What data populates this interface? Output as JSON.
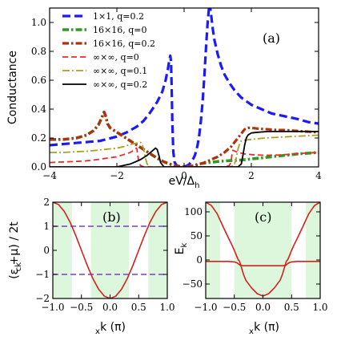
{
  "chart_data": [
    {
      "id": "a",
      "type": "line",
      "panel_label": "(a)",
      "ylabel": "Conductance",
      "xlabel": "eV/Δ",
      "xlabel_sub": "h",
      "xlim": [
        -4,
        4
      ],
      "ylim": [
        0,
        1.1
      ],
      "xticks": [
        -4,
        -2,
        0,
        2,
        4
      ],
      "xtick_labels": [
        "−4",
        "−2",
        "0",
        "2",
        "4"
      ],
      "yticks": [
        0,
        0.2,
        0.4,
        0.6,
        0.8,
        1.0
      ],
      "ytick_labels": [
        "0.0",
        "0.2",
        "0.4",
        "0.6",
        "0.8",
        "1.0"
      ],
      "legend_position": "top-left",
      "series": [
        {
          "name": "1×1,    q=0.2",
          "color": "#1a1aff",
          "dash": "dash-long",
          "width": 3.2,
          "x": [
            -4,
            -3.5,
            -3,
            -2.5,
            -2,
            -1.7,
            -1.4,
            -1.2,
            -1.0,
            -0.8,
            -0.65,
            -0.55,
            -0.48,
            -0.44,
            -0.41,
            -0.39,
            -0.37,
            -0.35,
            -0.32,
            -0.28,
            -0.22,
            -0.16,
            -0.1,
            -0.04,
            0,
            0.04,
            0.1,
            0.16,
            0.22,
            0.28,
            0.32,
            0.36,
            0.4,
            0.45,
            0.5,
            0.55,
            0.6,
            0.65,
            0.7,
            0.74,
            0.76,
            0.8,
            0.85,
            0.9,
            1.0,
            1.1,
            1.2,
            1.35,
            1.5,
            1.7,
            2.0,
            2.3,
            2.6,
            3.0,
            3.4,
            3.7,
            4.0
          ],
          "y": [
            0.15,
            0.16,
            0.17,
            0.18,
            0.21,
            0.24,
            0.28,
            0.32,
            0.38,
            0.45,
            0.52,
            0.6,
            0.68,
            0.74,
            0.77,
            0.73,
            0.55,
            0.3,
            0.1,
            0.03,
            0.01,
            0.005,
            0.004,
            0.003,
            0.003,
            0.004,
            0.01,
            0.02,
            0.04,
            0.06,
            0.08,
            0.11,
            0.15,
            0.22,
            0.32,
            0.45,
            0.62,
            0.82,
            1.0,
            1.1,
            1.13,
            1.06,
            0.96,
            0.88,
            0.78,
            0.7,
            0.64,
            0.58,
            0.53,
            0.48,
            0.43,
            0.4,
            0.37,
            0.35,
            0.33,
            0.31,
            0.3
          ]
        },
        {
          "name": "16×16, q=0",
          "color": "#2e9b1d",
          "dash": "dashdot-thick",
          "width": 3.6,
          "x": [
            -4,
            -3.6,
            -3.2,
            -2.9,
            -2.7,
            -2.55,
            -2.45,
            -2.38,
            -2.33,
            -2.28,
            -2.2,
            -2.0,
            -1.8,
            -1.6,
            -1.4,
            -1.2,
            -1.0,
            -0.8,
            -0.6,
            -0.4,
            -0.3,
            -0.2,
            -0.1,
            0,
            0.1,
            0.2,
            0.3,
            0.4,
            0.6,
            0.8,
            1.0,
            1.2,
            1.4,
            1.6,
            1.8,
            2.0,
            2.3,
            2.6,
            3.0,
            3.4,
            3.7,
            4.0
          ],
          "y": [
            0.19,
            0.19,
            0.2,
            0.22,
            0.25,
            0.29,
            0.34,
            0.38,
            0.35,
            0.3,
            0.27,
            0.24,
            0.21,
            0.18,
            0.15,
            0.12,
            0.09,
            0.06,
            0.035,
            0.018,
            0.01,
            0.005,
            0.002,
            0.001,
            0.002,
            0.005,
            0.01,
            0.018,
            0.026,
            0.032,
            0.037,
            0.041,
            0.044,
            0.046,
            0.05,
            0.055,
            0.062,
            0.07,
            0.08,
            0.09,
            0.095,
            0.1
          ]
        },
        {
          "name": "16×16, q=0.2",
          "color": "#b03010",
          "dash": "dashdot-thick",
          "width": 3.2,
          "x": [
            -4,
            -3.6,
            -3.2,
            -2.9,
            -2.7,
            -2.55,
            -2.45,
            -2.38,
            -2.33,
            -2.28,
            -2.2,
            -2.0,
            -1.8,
            -1.6,
            -1.4,
            -1.2,
            -1.0,
            -0.8,
            -0.6,
            -0.4,
            -0.2,
            0,
            0.2,
            0.4,
            0.6,
            0.8,
            1.0,
            1.2,
            1.4,
            1.5,
            1.6,
            1.7,
            1.8,
            1.9,
            2.0,
            2.2,
            2.5,
            2.8,
            3.0,
            3.3,
            3.6,
            4.0
          ],
          "y": [
            0.19,
            0.19,
            0.2,
            0.22,
            0.25,
            0.29,
            0.34,
            0.38,
            0.35,
            0.3,
            0.27,
            0.24,
            0.21,
            0.18,
            0.15,
            0.12,
            0.09,
            0.06,
            0.035,
            0.018,
            0.005,
            0.001,
            0.005,
            0.015,
            0.03,
            0.05,
            0.07,
            0.1,
            0.14,
            0.17,
            0.2,
            0.23,
            0.26,
            0.27,
            0.27,
            0.265,
            0.26,
            0.255,
            0.255,
            0.25,
            0.245,
            0.24
          ]
        },
        {
          "name": "∞×∞,   q=0",
          "color": "#ee2a2a",
          "dash": "dash",
          "width": 1.8,
          "x": [
            -4,
            -3.5,
            -3.0,
            -2.6,
            -2.3,
            -2.0,
            -1.8,
            -1.6,
            -1.5,
            -1.45,
            -1.42,
            -1.4,
            -1.38,
            -1.35,
            -1.3,
            -1.2,
            -1.0,
            -0.8,
            -0.6,
            -0.4,
            -0.2,
            0,
            0.2,
            0.4,
            0.6,
            0.8,
            1.0,
            1.2,
            1.35,
            1.4,
            1.42,
            1.45,
            1.5,
            1.6,
            1.8,
            2.0,
            2.4,
            2.8,
            3.2,
            3.6,
            4.0
          ],
          "y": [
            0.03,
            0.035,
            0.04,
            0.05,
            0.06,
            0.07,
            0.085,
            0.1,
            0.115,
            0.125,
            0.13,
            0.12,
            0.08,
            0.04,
            0.01,
            0.0,
            0.0,
            0.0,
            0.0,
            0.0,
            0.0,
            0.0,
            0.0,
            0.0,
            0.0,
            0.0,
            0.0,
            0.0,
            0.01,
            0.04,
            0.08,
            0.115,
            0.11,
            0.1,
            0.09,
            0.085,
            0.08,
            0.082,
            0.088,
            0.095,
            0.1
          ]
        },
        {
          "name": "∞×∞,   q=0.1",
          "color": "#aaa023",
          "dash": "dashdot",
          "width": 1.8,
          "x": [
            -4,
            -3.6,
            -3.2,
            -2.8,
            -2.4,
            -2.0,
            -1.8,
            -1.6,
            -1.4,
            -1.3,
            -1.25,
            -1.2,
            -1.15,
            -1.1,
            -1.0,
            -0.8,
            -0.6,
            -0.4,
            -0.2,
            0,
            0.2,
            0.4,
            0.6,
            0.8,
            1.0,
            1.2,
            1.4,
            1.5,
            1.55,
            1.6,
            1.65,
            1.7,
            1.8,
            2.0,
            2.4,
            2.8,
            3.2,
            3.6,
            4.0
          ],
          "y": [
            0.1,
            0.1,
            0.105,
            0.11,
            0.12,
            0.13,
            0.14,
            0.155,
            0.165,
            0.17,
            0.16,
            0.12,
            0.06,
            0.02,
            0.0,
            0.0,
            0.0,
            0.0,
            0.0,
            0.0,
            0.0,
            0.0,
            0.0,
            0.0,
            0.0,
            0.0,
            0.0,
            0.02,
            0.06,
            0.12,
            0.16,
            0.18,
            0.185,
            0.19,
            0.2,
            0.205,
            0.21,
            0.215,
            0.22
          ]
        },
        {
          "name": "∞×∞,   q=0.2",
          "color": "#000000",
          "dash": "solid",
          "width": 1.8,
          "x": [
            -4,
            -3.0,
            -2.0,
            -1.6,
            -1.3,
            -1.1,
            -1.0,
            -0.9,
            -0.85,
            -0.8,
            -0.75,
            -0.7,
            -0.6,
            -0.4,
            -0.2,
            0,
            0.2,
            0.4,
            0.6,
            0.8,
            1.0,
            1.2,
            1.4,
            1.6,
            1.7,
            1.75,
            1.8,
            1.85,
            1.9,
            2.0,
            2.2,
            2.5,
            2.8,
            3.0,
            3.3,
            3.6,
            4.0
          ],
          "y": [
            0,
            0,
            0,
            0.02,
            0.05,
            0.08,
            0.1,
            0.12,
            0.13,
            0.12,
            0.08,
            0.03,
            0.0,
            0.0,
            0.0,
            0.0,
            0.0,
            0.0,
            0.0,
            0.0,
            0.0,
            0.0,
            0.0,
            0.0,
            0.02,
            0.08,
            0.15,
            0.2,
            0.22,
            0.235,
            0.24,
            0.245,
            0.245,
            0.245,
            0.245,
            0.245,
            0.245
          ]
        }
      ]
    },
    {
      "id": "b",
      "type": "line",
      "panel_label": "(b)",
      "ylabel": "(ε   +μ) / 2t",
      "ylabel_sub": "ck",
      "xlabel": "k  (π)",
      "xlabel_sub": "x",
      "xlim": [
        -1,
        1
      ],
      "ylim": [
        -2,
        2
      ],
      "xticks": [
        -1,
        -0.5,
        0,
        0.5,
        1
      ],
      "xtick_labels": [
        "−1.0",
        "−0.5",
        "0.0",
        "0.5",
        "1.0"
      ],
      "yticks": [
        -2,
        -1,
        0,
        1,
        2
      ],
      "ytick_labels": [
        "−2",
        "−1",
        "0",
        "1",
        "2"
      ],
      "shaded_x_ranges": [
        [
          -1,
          -0.667
        ],
        [
          -0.333,
          0.333
        ],
        [
          0.667,
          1
        ]
      ],
      "shade_color": "#dcf7dc",
      "hlines": [
        {
          "y": 1,
          "color": "#7b3fd0",
          "dash": "dash"
        },
        {
          "y": -1,
          "color": "#7b3fd0",
          "dash": "dash"
        }
      ],
      "series": [
        {
          "color": "#d82020",
          "width": 1.6,
          "x": [
            -1,
            -0.9,
            -0.8,
            -0.7,
            -0.6,
            -0.5,
            -0.4,
            -0.3,
            -0.2,
            -0.1,
            0,
            0.1,
            0.2,
            0.3,
            0.4,
            0.5,
            0.6,
            0.7,
            0.8,
            0.9,
            1
          ],
          "y": [
            2,
            1.902,
            1.618,
            1.176,
            0.618,
            0,
            -0.618,
            -1.176,
            -1.618,
            -1.902,
            -2,
            -1.902,
            -1.618,
            -1.176,
            -0.618,
            0,
            0.618,
            1.176,
            1.618,
            1.902,
            2
          ]
        }
      ]
    },
    {
      "id": "c",
      "type": "line",
      "panel_label": "(c)",
      "ylabel": "E",
      "ylabel_sub": "k",
      "xlabel": "k  (π)",
      "xlabel_sub": "x",
      "xlim": [
        -1,
        1
      ],
      "ylim": [
        -80,
        120
      ],
      "xticks": [
        -1,
        -0.5,
        0,
        0.5,
        1
      ],
      "xtick_labels": [
        "−1.0",
        "−0.5",
        "0.0",
        "0.5",
        "1.0"
      ],
      "yticks": [
        -50,
        0,
        50,
        100
      ],
      "ytick_labels": [
        "−50",
        "0",
        "50",
        "100"
      ],
      "shaded_x_ranges": [
        [
          -1,
          -0.75
        ],
        [
          -0.5,
          0.5
        ],
        [
          0.75,
          1
        ]
      ],
      "shade_color": "#dcf7dc",
      "series": [
        {
          "color": "#d82020",
          "width": 1.6,
          "x": [
            -1,
            -0.9,
            -0.8,
            -0.7,
            -0.6,
            -0.55,
            -0.5,
            -0.46,
            -0.43,
            -0.41
          ],
          "y": [
            120,
            113,
            96,
            70,
            45,
            33,
            20,
            8,
            0,
            -2
          ]
        },
        {
          "color": "#d82020",
          "width": 1.6,
          "x": [
            -0.41,
            -0.38,
            -0.34,
            -0.3,
            -0.2,
            -0.1,
            0,
            0.1,
            0.2,
            0.3,
            0.34,
            0.38,
            0.41
          ],
          "y": [
            -2,
            -14,
            -30,
            -42,
            -58,
            -70,
            -75,
            -70,
            -58,
            -42,
            -30,
            -14,
            -2
          ]
        },
        {
          "color": "#d82020",
          "width": 1.6,
          "x": [
            0.41,
            0.43,
            0.46,
            0.5,
            0.55,
            0.6,
            0.7,
            0.8,
            0.9,
            1
          ],
          "y": [
            -2,
            0,
            8,
            20,
            33,
            45,
            70,
            96,
            113,
            120
          ]
        },
        {
          "color": "#d82020",
          "width": 1.6,
          "x": [
            -1,
            -0.8,
            -0.6,
            -0.5,
            -0.45,
            -0.42,
            -0.4,
            -0.35,
            -0.3,
            -0.2,
            0,
            0.2,
            0.3,
            0.35,
            0.4,
            0.42,
            0.45,
            0.5,
            0.6,
            0.8,
            1
          ],
          "y": [
            -3,
            -3,
            -3,
            -4,
            -6,
            -9,
            -11,
            -12,
            -12,
            -12,
            -12,
            -12,
            -12,
            -12,
            -11,
            -9,
            -6,
            -4,
            -3,
            -3,
            -3
          ]
        }
      ]
    }
  ]
}
